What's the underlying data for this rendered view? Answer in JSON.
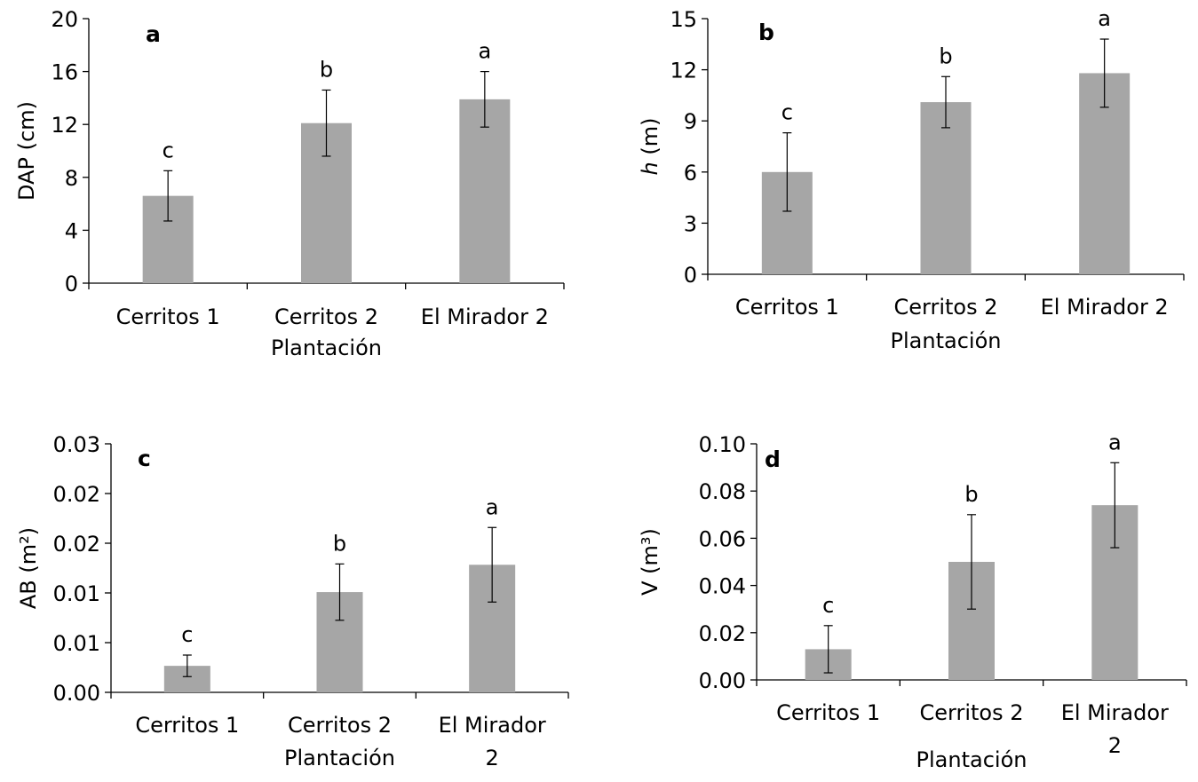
{
  "chart_data": [
    {
      "type": "bar",
      "panel_label": "a",
      "categories": [
        [
          "Cerritos 1"
        ],
        [
          "Cerritos 2"
        ],
        [
          "El Mirador 2"
        ]
      ],
      "values": [
        6.6,
        12.1,
        13.9
      ],
      "errors": [
        1.9,
        2.5,
        2.1
      ],
      "significance_letters": [
        "c",
        "b",
        "a"
      ],
      "ylabel": "DAP (cm)",
      "ylabel_italic_part": "",
      "xlabel": "Plantación",
      "ylim": [
        0,
        20
      ],
      "yticks": [
        "0",
        "4",
        "8",
        "12",
        "16",
        "20"
      ],
      "bar_color": "#a6a6a6",
      "grid": false
    },
    {
      "type": "bar",
      "panel_label": "b",
      "categories": [
        [
          "Cerritos 1"
        ],
        [
          "Cerritos 2"
        ],
        [
          "El Mirador 2"
        ]
      ],
      "values": [
        6.0,
        10.1,
        11.8
      ],
      "errors": [
        2.3,
        1.5,
        2.0
      ],
      "significance_letters": [
        "c",
        "b",
        "a"
      ],
      "ylabel": " (m)",
      "ylabel_italic_part": "h",
      "xlabel": "Plantación",
      "ylim": [
        0,
        15
      ],
      "yticks": [
        "0",
        "3",
        "6",
        "9",
        "12",
        "15"
      ],
      "bar_color": "#a6a6a6",
      "grid": false
    },
    {
      "type": "bar",
      "panel_label": "c",
      "categories": [
        [
          "Cerritos 1"
        ],
        [
          "Cerritos 2"
        ],
        [
          "El Mirador",
          "2"
        ]
      ],
      "values": [
        0.0032,
        0.0121,
        0.0154
      ],
      "errors": [
        0.0013,
        0.0034,
        0.0045
      ],
      "significance_letters": [
        "c",
        "b",
        "a"
      ],
      "ylabel": "AB (m²)",
      "ylabel_italic_part": "",
      "xlabel": "Plantación",
      "ylim": [
        0,
        0.03
      ],
      "yticks": [
        "0.00",
        "0.01",
        "0.01",
        "0.02",
        "0.02",
        "0.03"
      ],
      "bar_color": "#a6a6a6",
      "grid": false
    },
    {
      "type": "bar",
      "panel_label": "d",
      "categories": [
        [
          "Cerritos 1"
        ],
        [
          "Cerritos 2"
        ],
        [
          "El Mirador",
          "2"
        ]
      ],
      "values": [
        0.013,
        0.05,
        0.074
      ],
      "errors": [
        0.01,
        0.02,
        0.018
      ],
      "significance_letters": [
        "c",
        "b",
        "a"
      ],
      "ylabel": "V (m³)",
      "ylabel_italic_part": "",
      "xlabel": "Plantación",
      "ylim": [
        0,
        0.1
      ],
      "yticks": [
        "0.00",
        "0.02",
        "0.04",
        "0.06",
        "0.08",
        "0.10"
      ],
      "bar_color": "#a6a6a6",
      "grid": false
    }
  ]
}
